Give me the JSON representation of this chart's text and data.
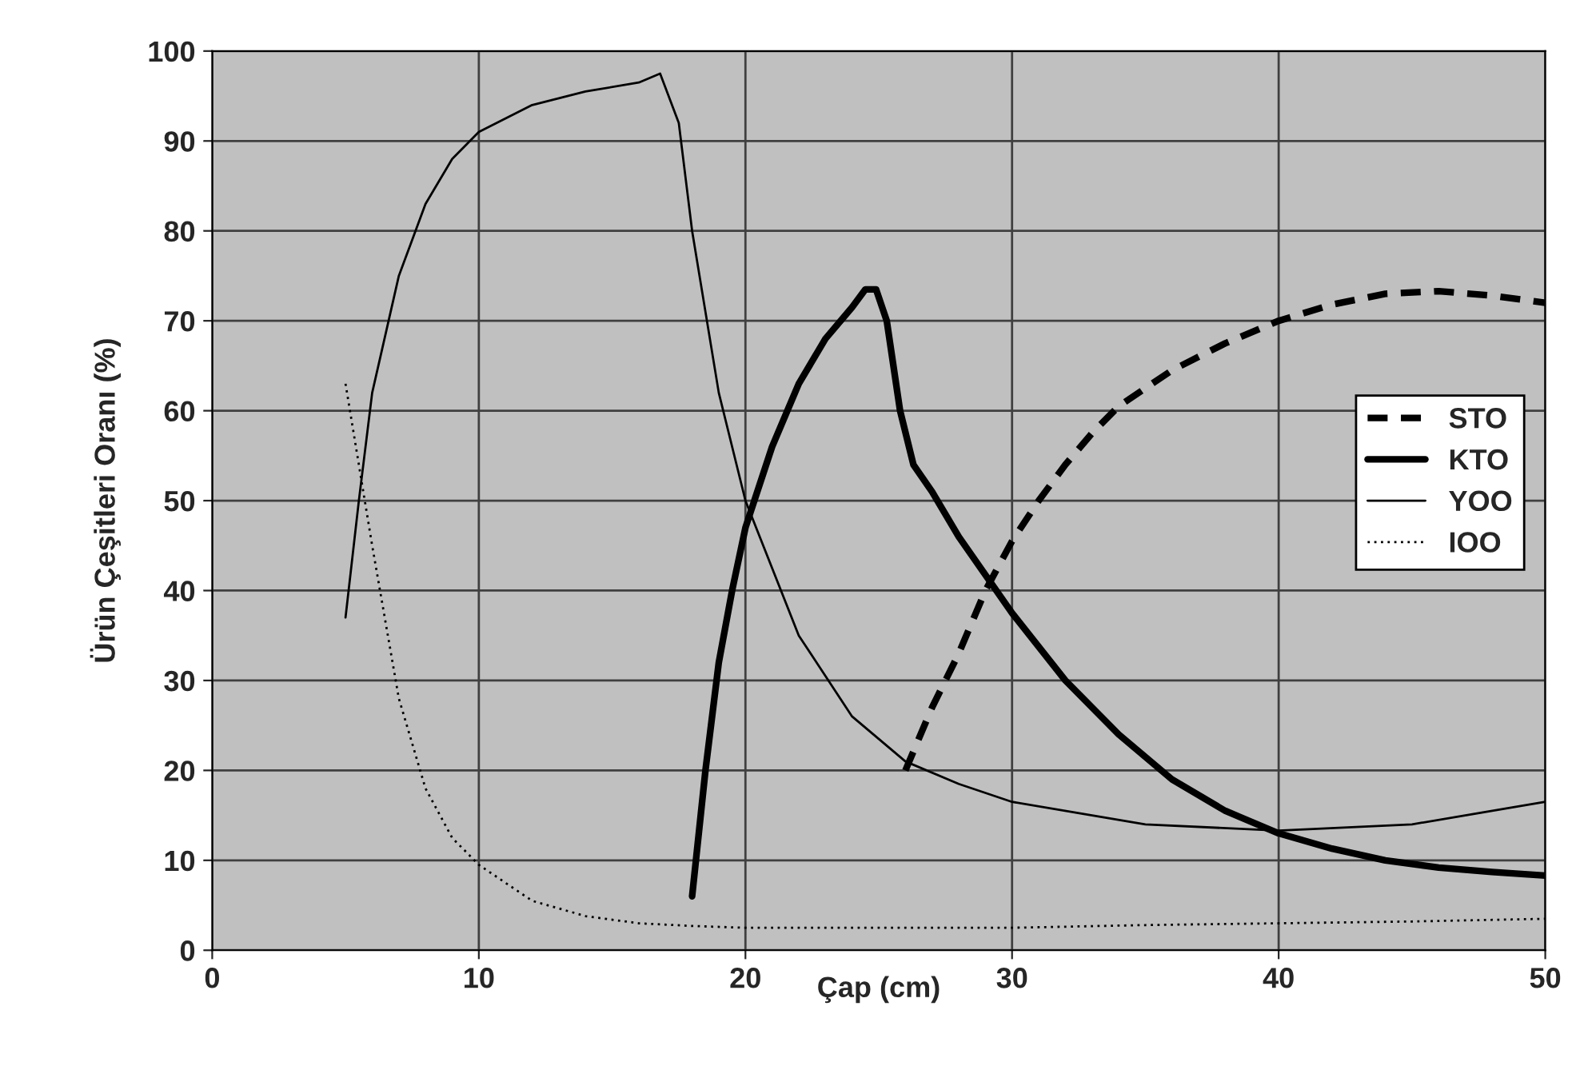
{
  "chart_data": {
    "type": "line",
    "xlabel": "Çap (cm)",
    "ylabel": "Ürün Çeşitleri Oranı (%)",
    "xlim": [
      0,
      50
    ],
    "xticks": [
      0,
      10,
      20,
      30,
      40,
      50
    ],
    "ylim": [
      0,
      100
    ],
    "yticks": [
      0,
      10,
      20,
      30,
      40,
      50,
      60,
      70,
      80,
      90,
      100
    ],
    "grid": true,
    "legend": "right",
    "series": [
      {
        "name": "STO",
        "color": "#000000",
        "line_style": "dashed",
        "x": [
          26,
          27,
          28,
          29,
          30,
          31,
          32,
          33,
          34,
          36,
          38,
          40,
          42,
          44,
          46,
          48,
          50
        ],
        "values": [
          20,
          27,
          33,
          40,
          45.5,
          50,
          54,
          57.5,
          60.5,
          64.5,
          67.5,
          70,
          71.8,
          73,
          73.3,
          72.8,
          72
        ]
      },
      {
        "name": "KTO",
        "color": "#000000",
        "line_style": "solid",
        "x": [
          18,
          18.5,
          19,
          19.5,
          20,
          21,
          22,
          23,
          24,
          24.5,
          24.9,
          25.3,
          25.8,
          26.3,
          27,
          28,
          30,
          32,
          34,
          36,
          38,
          40,
          42,
          44,
          46,
          48,
          50
        ],
        "values": [
          6,
          20,
          32,
          40,
          47,
          56,
          63,
          68,
          71.5,
          73.5,
          73.5,
          70,
          60,
          54,
          51,
          46,
          37.5,
          30,
          24,
          19,
          15.5,
          13,
          11.3,
          10,
          9.2,
          8.7,
          8.3
        ]
      },
      {
        "name": "YOO",
        "color": "#000000",
        "line_style": "solid",
        "x": [
          5,
          5.5,
          6,
          7,
          8,
          9,
          10,
          12,
          14,
          16,
          16.8,
          17.5,
          18,
          19,
          20,
          22,
          24,
          26,
          28,
          30,
          35,
          40,
          45,
          50
        ],
        "values": [
          37,
          50,
          62,
          75,
          83,
          88,
          91,
          94,
          95.5,
          96.5,
          97.5,
          92,
          80,
          62,
          50,
          35,
          26,
          21,
          18.5,
          16.5,
          14,
          13.3,
          14,
          16.5
        ]
      },
      {
        "name": "IOO",
        "color": "#000000",
        "line_style": "dotted",
        "x": [
          5,
          6,
          7,
          8,
          9,
          10,
          12,
          14,
          16,
          18,
          20,
          25,
          30,
          35,
          40,
          45,
          50
        ],
        "values": [
          63,
          45,
          28,
          18,
          12.5,
          9.5,
          5.5,
          3.8,
          3,
          2.7,
          2.5,
          2.5,
          2.5,
          2.8,
          3,
          3.2,
          3.5
        ]
      }
    ]
  }
}
